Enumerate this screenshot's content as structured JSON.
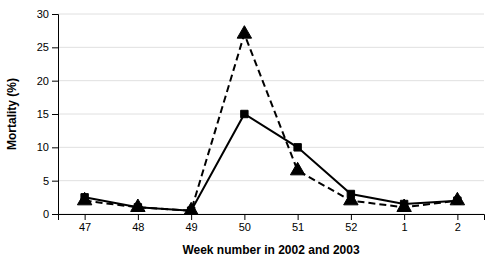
{
  "chart_data": {
    "type": "line",
    "categories": [
      "47",
      "48",
      "49",
      "50",
      "51",
      "52",
      "1",
      "2"
    ],
    "series": [
      {
        "color": "black",
        "marker": "triangle",
        "line_style": "dashed",
        "values": [
          2.0,
          1.0,
          0.5,
          27.0,
          6.5,
          2.0,
          1.0,
          2.0
        ]
      },
      {
        "color": "black",
        "marker": "square",
        "line_style": "solid",
        "values": [
          2.5,
          1.0,
          0.5,
          15.0,
          10.0,
          3.0,
          1.5,
          2.0
        ]
      }
    ],
    "xlabel": "Week number in 2002 and 2003",
    "ylabel": "Mortality (%)",
    "ylim": [
      0,
      30
    ],
    "yticks": [
      0,
      5,
      10,
      15,
      20,
      25,
      30
    ],
    "grid": true
  }
}
